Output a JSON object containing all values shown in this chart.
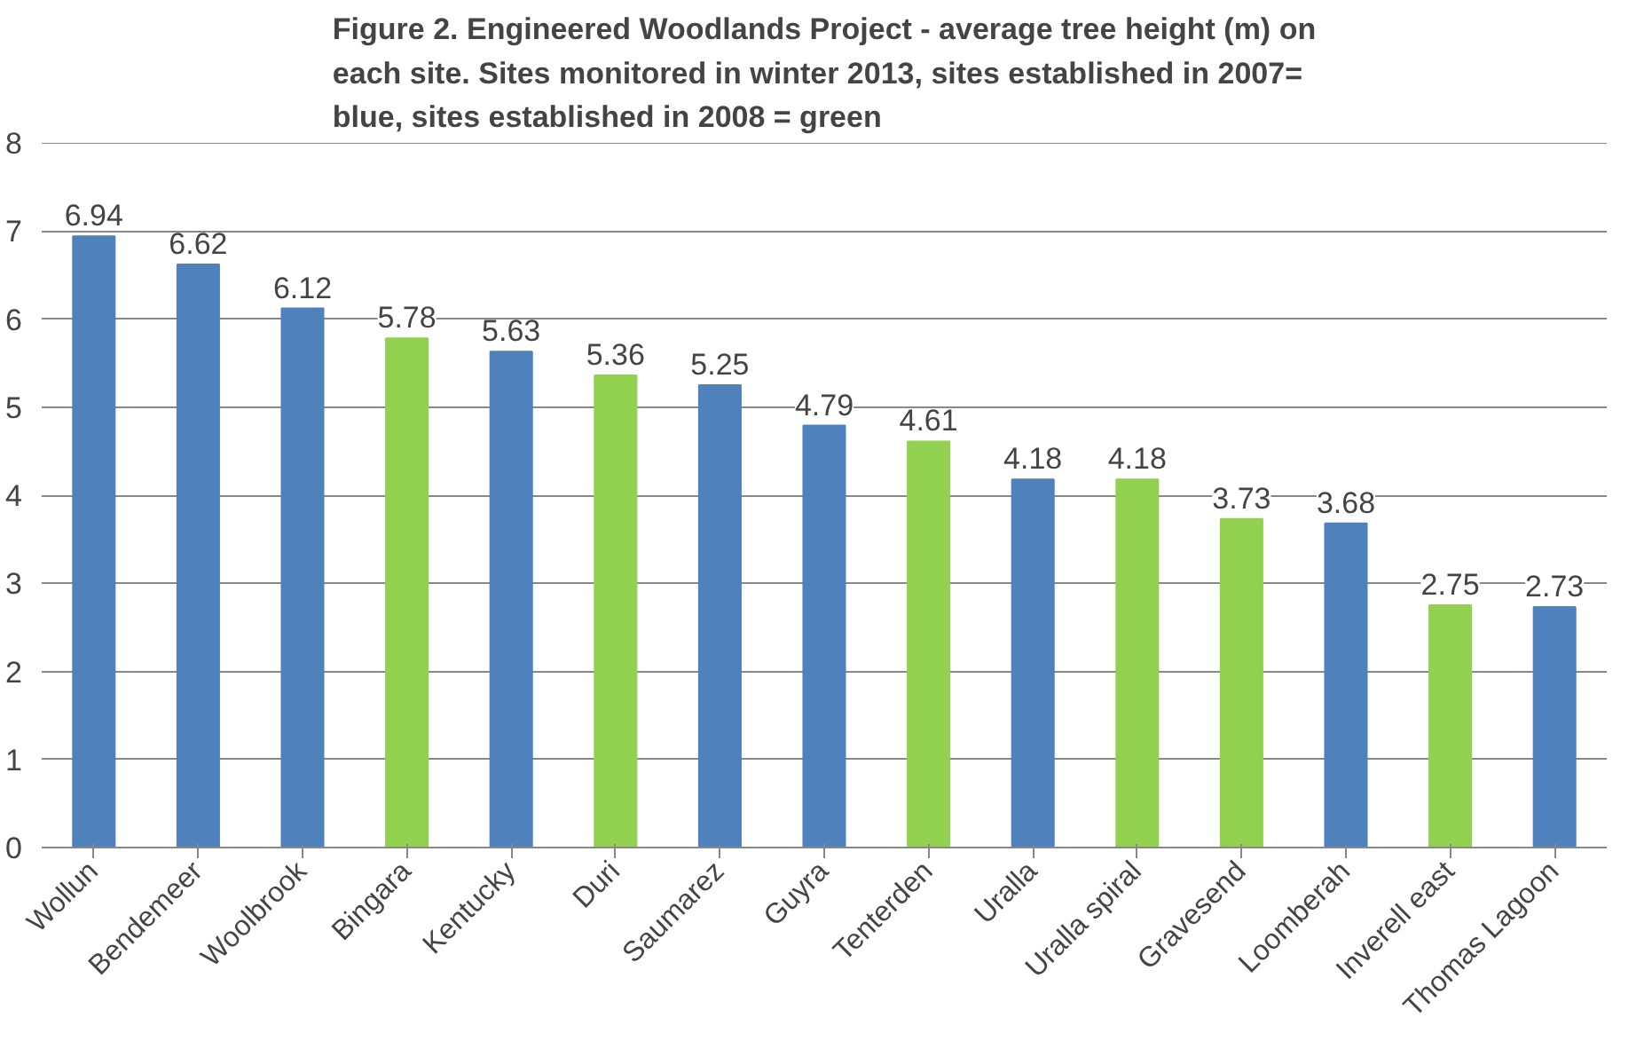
{
  "chart_data": {
    "type": "bar",
    "title": "Figure 2. Engineered Woodlands Project - average tree height (m) on each site. Sites monitored in winter 2013, sites established in 2007= blue, sites established in 2008 = green",
    "categories": [
      "Wollun",
      "Bendemeer",
      "Woolbrook",
      "Bingara",
      "Kentucky",
      "Duri",
      "Saumarez",
      "Guyra",
      "Tenterden",
      "Uralla",
      "Uralla spiral",
      "Gravesend",
      "Loomberah",
      "Inverell east",
      "Thomas Lagoon"
    ],
    "values": [
      6.94,
      6.62,
      6.12,
      5.78,
      5.63,
      5.36,
      5.25,
      4.79,
      4.61,
      4.18,
      4.18,
      3.73,
      3.68,
      2.75,
      2.73
    ],
    "colors": [
      "#4f81bd",
      "#4f81bd",
      "#4f81bd",
      "#92d050",
      "#4f81bd",
      "#92d050",
      "#4f81bd",
      "#4f81bd",
      "#92d050",
      "#4f81bd",
      "#92d050",
      "#92d050",
      "#4f81bd",
      "#92d050",
      "#4f81bd"
    ],
    "ylim": [
      0,
      8
    ],
    "yticks": [
      0,
      1,
      2,
      3,
      4,
      5,
      6,
      7,
      8
    ],
    "grid": "y",
    "data_labels": true
  }
}
